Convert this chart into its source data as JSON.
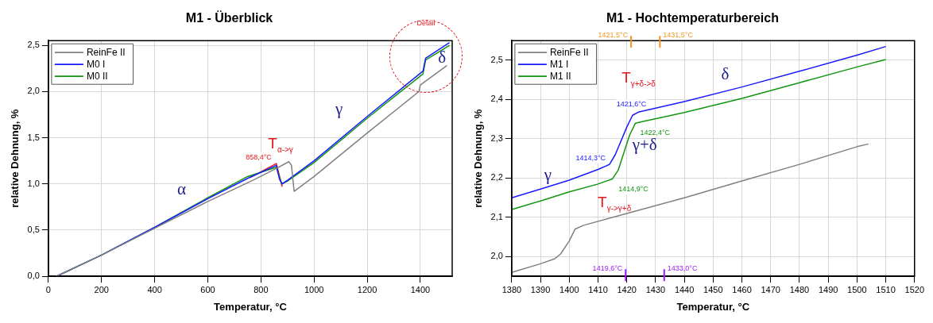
{
  "chart_data": [
    {
      "type": "line",
      "title": "M1 - Überblick",
      "xlabel": "Temperatur, °C",
      "ylabel": "relative Dehnung, %",
      "xlim": [
        0,
        1520
      ],
      "xticks": [
        0,
        200,
        400,
        600,
        800,
        1000,
        1200,
        1400
      ],
      "ylim": [
        0,
        2.55
      ],
      "yticks": [
        {
          "value": 0,
          "label": "0,0"
        },
        {
          "value": 0.5,
          "label": "0,5"
        },
        {
          "value": 1,
          "label": "1,0"
        },
        {
          "value": 1.5,
          "label": "1,5"
        },
        {
          "value": 2,
          "label": "2,0"
        },
        {
          "value": 2.5,
          "label": "2,5"
        }
      ],
      "grid": true,
      "legend": "top left",
      "marker": "none",
      "line_style": "solid",
      "series": [
        {
          "name": "ReinFe II",
          "color": "#808080",
          "x": [
            30,
            200,
            400,
            600,
            770,
            860,
            905,
            915,
            925,
            1000,
            1200,
            1395,
            1400,
            1500
          ],
          "values": [
            0,
            0.23,
            0.52,
            0.81,
            1.04,
            1.17,
            1.24,
            1.2,
            0.92,
            1.08,
            1.55,
            2.0,
            2.07,
            2.28
          ]
        },
        {
          "name": "M0 I",
          "color": "#1a1aff",
          "x": [
            30,
            200,
            400,
            600,
            750,
            858,
            870,
            880,
            900,
            1000,
            1200,
            1410,
            1420,
            1510
          ],
          "values": [
            0,
            0.23,
            0.53,
            0.84,
            1.06,
            1.2,
            1.05,
            1.0,
            1.04,
            1.25,
            1.73,
            2.22,
            2.36,
            2.53
          ]
        },
        {
          "name": "M0 II",
          "color": "#129612",
          "x": [
            30,
            200,
            400,
            600,
            750,
            858,
            878,
            900,
            1000,
            1200,
            1410,
            1420,
            1510
          ],
          "values": [
            0,
            0.23,
            0.53,
            0.85,
            1.08,
            1.18,
            1.0,
            1.03,
            1.23,
            1.71,
            2.19,
            2.34,
            2.5
          ]
        },
        {
          "color": "#e8161b",
          "x": [
            760,
            858,
            880
          ],
          "values": [
            1.07,
            1.22,
            0.97
          ]
        }
      ],
      "annotations": [
        "Detail",
        {
          "text": "858,4°C",
          "x": 858.4,
          "y": 1.22
        },
        "T$_{α->γ}$",
        "α",
        "γ",
        "δ"
      ]
    },
    {
      "type": "line",
      "title": "M1 - Hochtemperaturbereich",
      "xlabel": "Temperatur, °C",
      "ylabel": "relative Dehnung, %",
      "xlim": [
        1380,
        1520
      ],
      "xticks": [
        1380,
        1390,
        1400,
        1410,
        1420,
        1430,
        1440,
        1450,
        1460,
        1470,
        1480,
        1490,
        1500,
        1510,
        1520
      ],
      "ylim": [
        1.95,
        2.55
      ],
      "yticks": [
        {
          "value": 2,
          "label": "2,0"
        },
        {
          "value": 2.1,
          "label": "2,1"
        },
        {
          "value": 2.2,
          "label": "2,2"
        },
        {
          "value": 2.3,
          "label": "2,3"
        },
        {
          "value": 2.4,
          "label": "2,4"
        },
        {
          "value": 2.5,
          "label": "2,5"
        }
      ],
      "grid": true,
      "legend": "top left",
      "marker": "none",
      "line_style": "solid",
      "series": [
        {
          "name": "ReinFe II",
          "color": "#808080",
          "x": [
            1380,
            1390,
            1395,
            1397,
            1400,
            1402,
            1405,
            1420,
            1440,
            1460,
            1480,
            1500,
            1504
          ],
          "values": [
            1.96,
            1.982,
            1.995,
            2.007,
            2.04,
            2.07,
            2.08,
            2.11,
            2.15,
            2.193,
            2.235,
            2.28,
            2.287
          ]
        },
        {
          "name": "M1 I",
          "color": "#1a1aff",
          "x": [
            1380,
            1390,
            1400,
            1410,
            1414,
            1416,
            1420,
            1422,
            1424,
            1440,
            1460,
            1480,
            1500,
            1510
          ],
          "values": [
            2.15,
            2.172,
            2.195,
            2.222,
            2.235,
            2.26,
            2.33,
            2.36,
            2.368,
            2.395,
            2.432,
            2.472,
            2.513,
            2.535
          ]
        },
        {
          "name": "M1 II",
          "color": "#129612",
          "x": [
            1380,
            1390,
            1400,
            1410,
            1415,
            1417,
            1421,
            1423,
            1426,
            1440,
            1460,
            1480,
            1500,
            1510
          ],
          "values": [
            2.12,
            2.142,
            2.165,
            2.185,
            2.198,
            2.22,
            2.31,
            2.34,
            2.345,
            2.367,
            2.403,
            2.443,
            2.483,
            2.502
          ]
        }
      ],
      "ref_lines": [
        {
          "axis": "x",
          "value": 1421.5,
          "label": "1421,5°C",
          "color": "#f7941d"
        },
        {
          "axis": "x",
          "value": 1431.5,
          "label": "1431,5°C",
          "color": "#f7941d"
        },
        {
          "axis": "x",
          "value": 1419.6,
          "label": "1419,6°C",
          "color": "#9b1aff"
        },
        {
          "axis": "x",
          "value": 1433.0,
          "label": "1433,0°C",
          "color": "#9b1aff"
        }
      ],
      "annotations": [
        {
          "text": "1414,3°C",
          "x": 1414.3,
          "y": 2.23
        },
        {
          "text": "1421,6°C",
          "x": 1421.6,
          "y": 2.36
        },
        {
          "text": "1422,4°C",
          "x": 1422.4,
          "y": 2.34
        },
        {
          "text": "1414,9°C",
          "x": 1414.9,
          "y": 2.195
        },
        "T$_{γ+δ->δ}$",
        "T$_{γ->γ+δ}$",
        "γ",
        "δ",
        "γ+δ"
      ]
    }
  ]
}
